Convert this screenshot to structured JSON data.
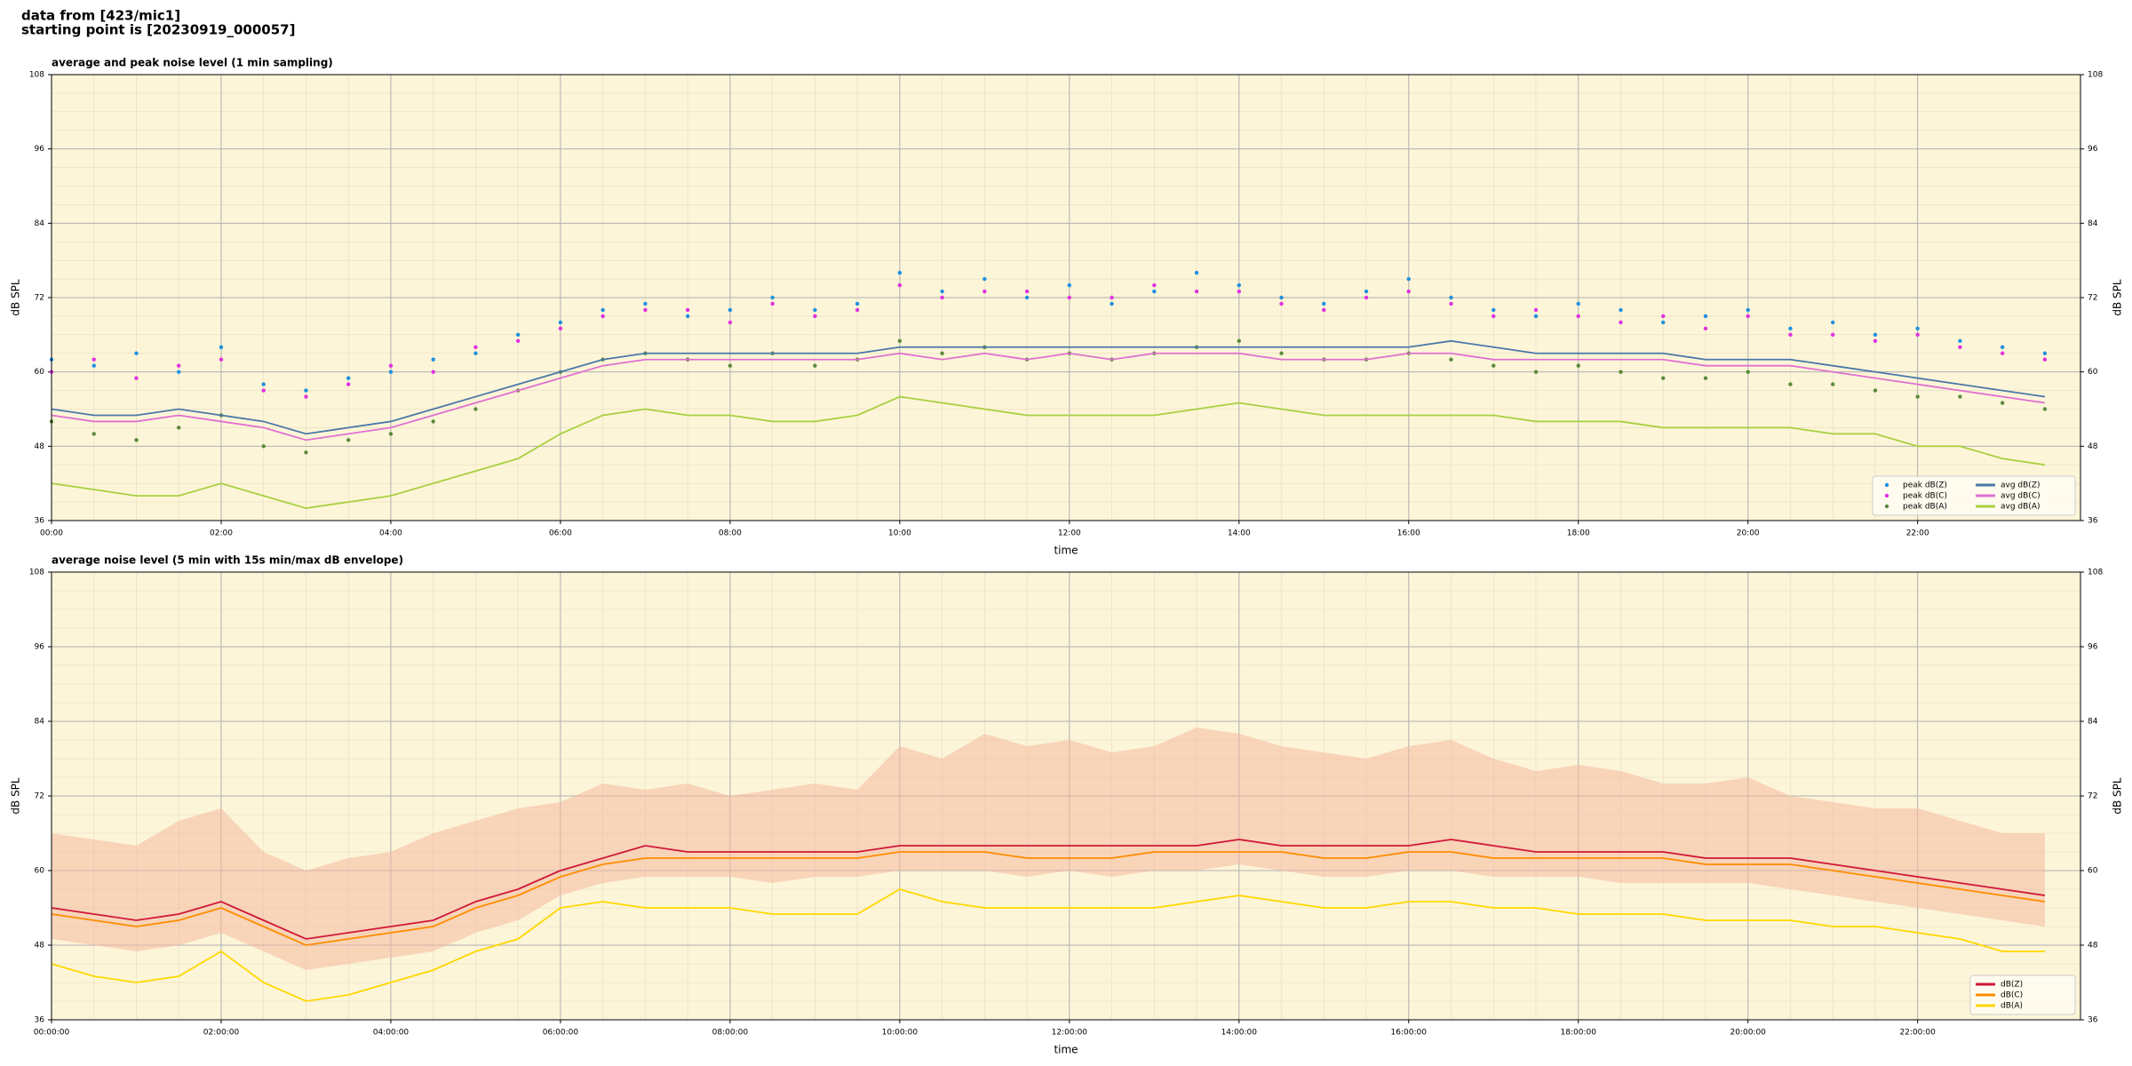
{
  "header": {
    "line1": "data from [423/mic1]",
    "line2": "starting point is [20230919_000057]"
  },
  "chart_data": [
    {
      "type": "line",
      "title": "average and peak noise level (1 min sampling)",
      "xlabel": "time",
      "ylabel": "dB SPL",
      "xlim": [
        0,
        23.92
      ],
      "ylim": [
        36,
        108
      ],
      "yticks": [
        36,
        48,
        60,
        72,
        84,
        96,
        108
      ],
      "xticks": [
        {
          "value": 0,
          "label": "00:00"
        },
        {
          "value": 2,
          "label": "02:00"
        },
        {
          "value": 4,
          "label": "04:00"
        },
        {
          "value": 6,
          "label": "06:00"
        },
        {
          "value": 8,
          "label": "08:00"
        },
        {
          "value": 10,
          "label": "10:00"
        },
        {
          "value": 12,
          "label": "12:00"
        },
        {
          "value": 14,
          "label": "14:00"
        },
        {
          "value": 16,
          "label": "16:00"
        },
        {
          "value": 18,
          "label": "18:00"
        },
        {
          "value": 20,
          "label": "20:00"
        },
        {
          "value": 22,
          "label": "22:00"
        }
      ],
      "grid": true,
      "background": "#fdf5d8",
      "legend": "lower right",
      "legend_columns": 2,
      "x": [
        0,
        0.5,
        1,
        1.5,
        2,
        2.5,
        3,
        3.5,
        4,
        4.5,
        5,
        5.5,
        6,
        6.5,
        7,
        7.5,
        8,
        8.5,
        9,
        9.5,
        10,
        10.5,
        11,
        11.5,
        12,
        12.5,
        13,
        13.5,
        14,
        14.5,
        15,
        15.5,
        16,
        16.5,
        17,
        17.5,
        18,
        18.5,
        19,
        19.5,
        20,
        20.5,
        21,
        21.5,
        22,
        22.5,
        23,
        23.5
      ],
      "series": [
        {
          "name": "peak dB(Z)",
          "type": "scatter",
          "color": "#1e90e0",
          "values": [
            62,
            61,
            63,
            60,
            64,
            58,
            57,
            59,
            60,
            62,
            63,
            66,
            68,
            70,
            71,
            69,
            70,
            72,
            70,
            71,
            76,
            73,
            75,
            72,
            74,
            71,
            73,
            76,
            74,
            72,
            71,
            73,
            75,
            72,
            70,
            69,
            71,
            70,
            68,
            69,
            70,
            67,
            68,
            66,
            67,
            65,
            64,
            63
          ]
        },
        {
          "name": "peak dB(C)",
          "type": "scatter",
          "color": "#e030e0",
          "values": [
            60,
            62,
            59,
            61,
            62,
            57,
            56,
            58,
            61,
            60,
            64,
            65,
            67,
            69,
            70,
            70,
            68,
            71,
            69,
            70,
            74,
            72,
            73,
            73,
            72,
            72,
            74,
            73,
            73,
            71,
            70,
            72,
            73,
            71,
            69,
            70,
            69,
            68,
            69,
            67,
            69,
            66,
            66,
            65,
            66,
            64,
            63,
            62
          ]
        },
        {
          "name": "peak dB(A)",
          "type": "scatter",
          "color": "#5a8a3a",
          "values": [
            52,
            50,
            49,
            51,
            53,
            48,
            47,
            49,
            50,
            52,
            54,
            57,
            60,
            62,
            63,
            62,
            61,
            63,
            61,
            62,
            65,
            63,
            64,
            62,
            63,
            62,
            63,
            64,
            65,
            63,
            62,
            62,
            63,
            62,
            61,
            60,
            61,
            60,
            59,
            59,
            60,
            58,
            58,
            57,
            56,
            56,
            55,
            54
          ]
        },
        {
          "name": "avg dB(Z)",
          "type": "line",
          "color": "#4a78a8",
          "values": [
            54,
            53,
            53,
            54,
            53,
            52,
            50,
            51,
            52,
            54,
            56,
            58,
            60,
            62,
            63,
            63,
            63,
            63,
            63,
            63,
            64,
            64,
            64,
            64,
            64,
            64,
            64,
            64,
            64,
            64,
            64,
            64,
            64,
            65,
            64,
            63,
            63,
            63,
            63,
            62,
            62,
            62,
            61,
            60,
            59,
            58,
            57,
            56
          ]
        },
        {
          "name": "avg dB(C)",
          "type": "line",
          "color": "#e070d0",
          "values": [
            53,
            52,
            52,
            53,
            52,
            51,
            49,
            50,
            51,
            53,
            55,
            57,
            59,
            61,
            62,
            62,
            62,
            62,
            62,
            62,
            63,
            62,
            63,
            62,
            63,
            62,
            63,
            63,
            63,
            62,
            62,
            62,
            63,
            63,
            62,
            62,
            62,
            62,
            62,
            61,
            61,
            61,
            60,
            59,
            58,
            57,
            56,
            55
          ]
        },
        {
          "name": "avg dB(A)",
          "type": "line",
          "color": "#a8d040",
          "values": [
            42,
            41,
            40,
            40,
            42,
            40,
            38,
            39,
            40,
            42,
            44,
            46,
            50,
            53,
            54,
            53,
            53,
            52,
            52,
            53,
            56,
            55,
            54,
            53,
            53,
            53,
            53,
            54,
            55,
            54,
            53,
            53,
            53,
            53,
            53,
            52,
            52,
            52,
            51,
            51,
            51,
            51,
            50,
            50,
            48,
            48,
            46,
            45
          ]
        }
      ]
    },
    {
      "type": "line",
      "title": "average noise level (5 min with 15s min/max dB envelope)",
      "xlabel": "time",
      "ylabel": "dB SPL",
      "xlim": [
        0,
        23.92
      ],
      "ylim": [
        36,
        108
      ],
      "yticks": [
        36,
        48,
        60,
        72,
        84,
        96,
        108
      ],
      "xticks": [
        {
          "value": 0,
          "label": "00:00:00"
        },
        {
          "value": 2,
          "label": "02:00:00"
        },
        {
          "value": 4,
          "label": "04:00:00"
        },
        {
          "value": 6,
          "label": "06:00:00"
        },
        {
          "value": 8,
          "label": "08:00:00"
        },
        {
          "value": 10,
          "label": "10:00:00"
        },
        {
          "value": 12,
          "label": "12:00:00"
        },
        {
          "value": 14,
          "label": "14:00:00"
        },
        {
          "value": 16,
          "label": "16:00:00"
        },
        {
          "value": 18,
          "label": "18:00:00"
        },
        {
          "value": 20,
          "label": "20:00:00"
        },
        {
          "value": 22,
          "label": "22:00:00"
        }
      ],
      "grid": true,
      "background": "#fdf5d8",
      "legend": "lower right",
      "legend_columns": 1,
      "x": [
        0,
        0.5,
        1,
        1.5,
        2,
        2.5,
        3,
        3.5,
        4,
        4.5,
        5,
        5.5,
        6,
        6.5,
        7,
        7.5,
        8,
        8.5,
        9,
        9.5,
        10,
        10.5,
        11,
        11.5,
        12,
        12.5,
        13,
        13.5,
        14,
        14.5,
        15,
        15.5,
        16,
        16.5,
        17,
        17.5,
        18,
        18.5,
        19,
        19.5,
        20,
        20.5,
        21,
        21.5,
        22,
        22.5,
        23,
        23.5
      ],
      "envelope_color": "#f4b8a0",
      "envelope_max": [
        66,
        65,
        64,
        68,
        70,
        63,
        60,
        62,
        63,
        66,
        68,
        70,
        71,
        74,
        73,
        74,
        72,
        73,
        74,
        73,
        80,
        78,
        82,
        80,
        81,
        79,
        80,
        83,
        82,
        80,
        79,
        78,
        80,
        81,
        78,
        76,
        77,
        76,
        74,
        74,
        75,
        72,
        71,
        70,
        70,
        68,
        66,
        66
      ],
      "envelope_min": [
        49,
        48,
        47,
        48,
        50,
        47,
        44,
        45,
        46,
        47,
        50,
        52,
        56,
        58,
        59,
        59,
        59,
        58,
        59,
        59,
        60,
        60,
        60,
        59,
        60,
        59,
        60,
        60,
        61,
        60,
        59,
        59,
        60,
        60,
        59,
        59,
        59,
        58,
        58,
        58,
        58,
        57,
        56,
        55,
        54,
        53,
        52,
        51
      ],
      "series": [
        {
          "name": "dB(Z)",
          "type": "line",
          "color": "#d01838",
          "values": [
            54,
            53,
            52,
            53,
            55,
            52,
            49,
            50,
            51,
            52,
            55,
            57,
            60,
            62,
            64,
            63,
            63,
            63,
            63,
            63,
            64,
            64,
            64,
            64,
            64,
            64,
            64,
            64,
            65,
            64,
            64,
            64,
            64,
            65,
            64,
            63,
            63,
            63,
            63,
            62,
            62,
            62,
            61,
            60,
            59,
            58,
            57,
            56
          ]
        },
        {
          "name": "dB(C)",
          "type": "line",
          "color": "#ff8c00",
          "values": [
            53,
            52,
            51,
            52,
            54,
            51,
            48,
            49,
            50,
            51,
            54,
            56,
            59,
            61,
            62,
            62,
            62,
            62,
            62,
            62,
            63,
            63,
            63,
            62,
            62,
            62,
            63,
            63,
            63,
            63,
            62,
            62,
            63,
            63,
            62,
            62,
            62,
            62,
            62,
            61,
            61,
            61,
            60,
            59,
            58,
            57,
            56,
            55
          ]
        },
        {
          "name": "dB(A)",
          "type": "line",
          "color": "#ffd700",
          "values": [
            45,
            43,
            42,
            43,
            47,
            42,
            39,
            40,
            42,
            44,
            47,
            49,
            54,
            55,
            54,
            54,
            54,
            53,
            53,
            53,
            57,
            55,
            54,
            54,
            54,
            54,
            54,
            55,
            56,
            55,
            54,
            54,
            55,
            55,
            54,
            54,
            53,
            53,
            53,
            52,
            52,
            52,
            51,
            51,
            50,
            49,
            47,
            47
          ]
        }
      ]
    }
  ]
}
